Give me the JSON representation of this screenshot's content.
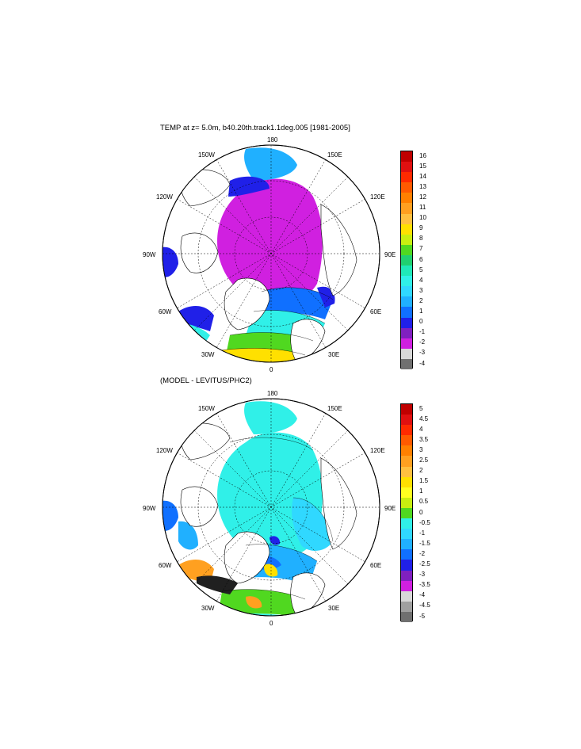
{
  "top_panel": {
    "title": "TEMP at z=   5.0m, b40.20th.track1.1deg.005 [1981-2005]",
    "colorbar": {
      "labels": [
        "16",
        "15",
        "14",
        "13",
        "12",
        "11",
        "10",
        "9",
        "8",
        "7",
        "6",
        "5",
        "4",
        "3",
        "2",
        "1",
        "0",
        "-1",
        "-2",
        "-3",
        "-4"
      ],
      "colors": [
        "#c00000",
        "#e01010",
        "#ff2a00",
        "#ff5a00",
        "#ff8000",
        "#ffa020",
        "#ffc040",
        "#ffe000",
        "#c8ee10",
        "#50d820",
        "#20d070",
        "#20e8b8",
        "#30f0e8",
        "#30d8ff",
        "#20b0ff",
        "#1070ff",
        "#2020e8",
        "#8020c0",
        "#d020e0",
        "#d8d8d8",
        "#707070"
      ]
    }
  },
  "bottom_panel": {
    "title": "(MODEL - LEVITUS/PHC2)",
    "colorbar": {
      "labels": [
        "5",
        "4.5",
        "4",
        "3.5",
        "3",
        "2.5",
        "2",
        "1.5",
        "1",
        "0.5",
        "0",
        "-0.5",
        "-1",
        "-1.5",
        "-2",
        "-2.5",
        "-3",
        "-3.5",
        "-4",
        "-4.5",
        "-5"
      ],
      "colors": [
        "#c00000",
        "#e01010",
        "#ff2a00",
        "#ff5a00",
        "#ff8000",
        "#ffa020",
        "#ffc040",
        "#ffe000",
        "#ffff20",
        "#c8ee10",
        "#50d820",
        "#30f0e8",
        "#30d8ff",
        "#20b0ff",
        "#1070ff",
        "#2020e8",
        "#8020c0",
        "#d020e0",
        "#d8d8d8",
        "#a0a0a0",
        "#707070"
      ]
    }
  },
  "map_labels": {
    "lon_180": "180",
    "lon_150W": "150W",
    "lon_150E": "150E",
    "lon_120W": "120W",
    "lon_120E": "120E",
    "lon_90W": "90W",
    "lon_90E": "90E",
    "lon_60W": "60W",
    "lon_60E": "60E",
    "lon_30W": "30W",
    "lon_30E": "30E",
    "lon_0": "0"
  },
  "colors": {
    "land": "#ffffff",
    "ice_interior_top": "#d020e0",
    "ice_interior_bottom": "#30f0e8"
  }
}
